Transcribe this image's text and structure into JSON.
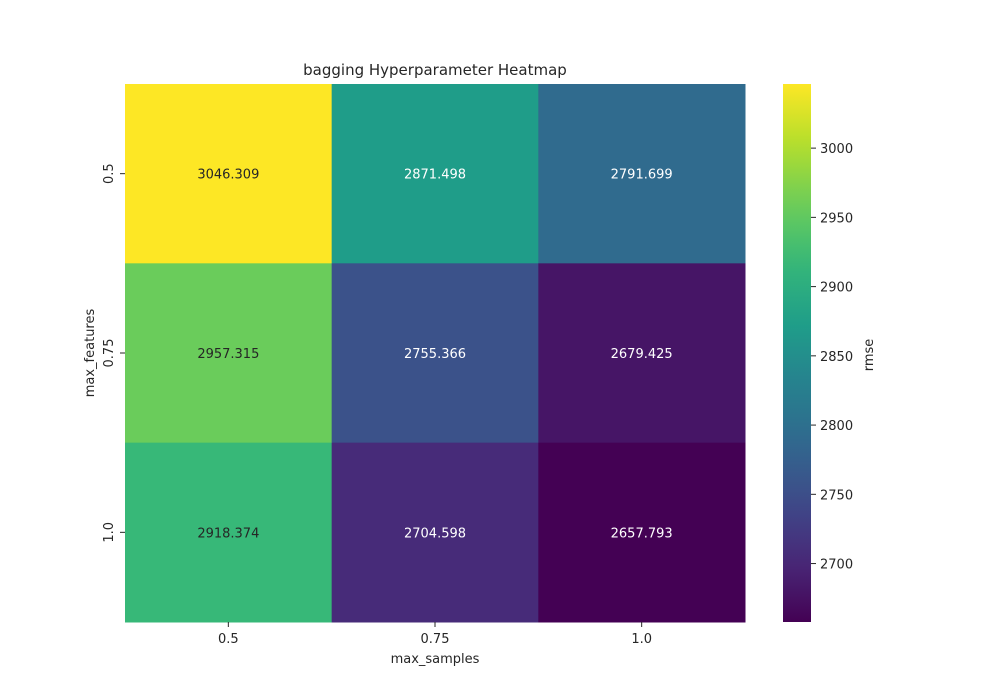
{
  "chart_data": {
    "type": "heatmap",
    "title": "bagging Hyperparameter Heatmap",
    "xlabel": "max_samples",
    "ylabel": "max_features",
    "x_categories": [
      "0.5",
      "0.75",
      "1.0"
    ],
    "y_categories": [
      "0.5",
      "0.75",
      "1.0"
    ],
    "values": [
      [
        3046.309,
        2871.498,
        2791.699
      ],
      [
        2957.315,
        2755.366,
        2679.425
      ],
      [
        2918.374,
        2704.598,
        2657.793
      ]
    ],
    "cell_labels": [
      [
        "3046.309",
        "2871.498",
        "2791.699"
      ],
      [
        "2957.315",
        "2755.366",
        "2679.425"
      ],
      [
        "2918.374",
        "2704.598",
        "2657.793"
      ]
    ],
    "colormap": "viridis",
    "colorbar": {
      "label": "rmse",
      "range": [
        2657.793,
        3046.309
      ],
      "ticks": [
        2700,
        2750,
        2800,
        2850,
        2900,
        2950,
        3000
      ],
      "tick_labels": [
        "2700",
        "2750",
        "2800",
        "2850",
        "2900",
        "2950",
        "3000"
      ]
    },
    "grid": false,
    "legend": "none"
  }
}
